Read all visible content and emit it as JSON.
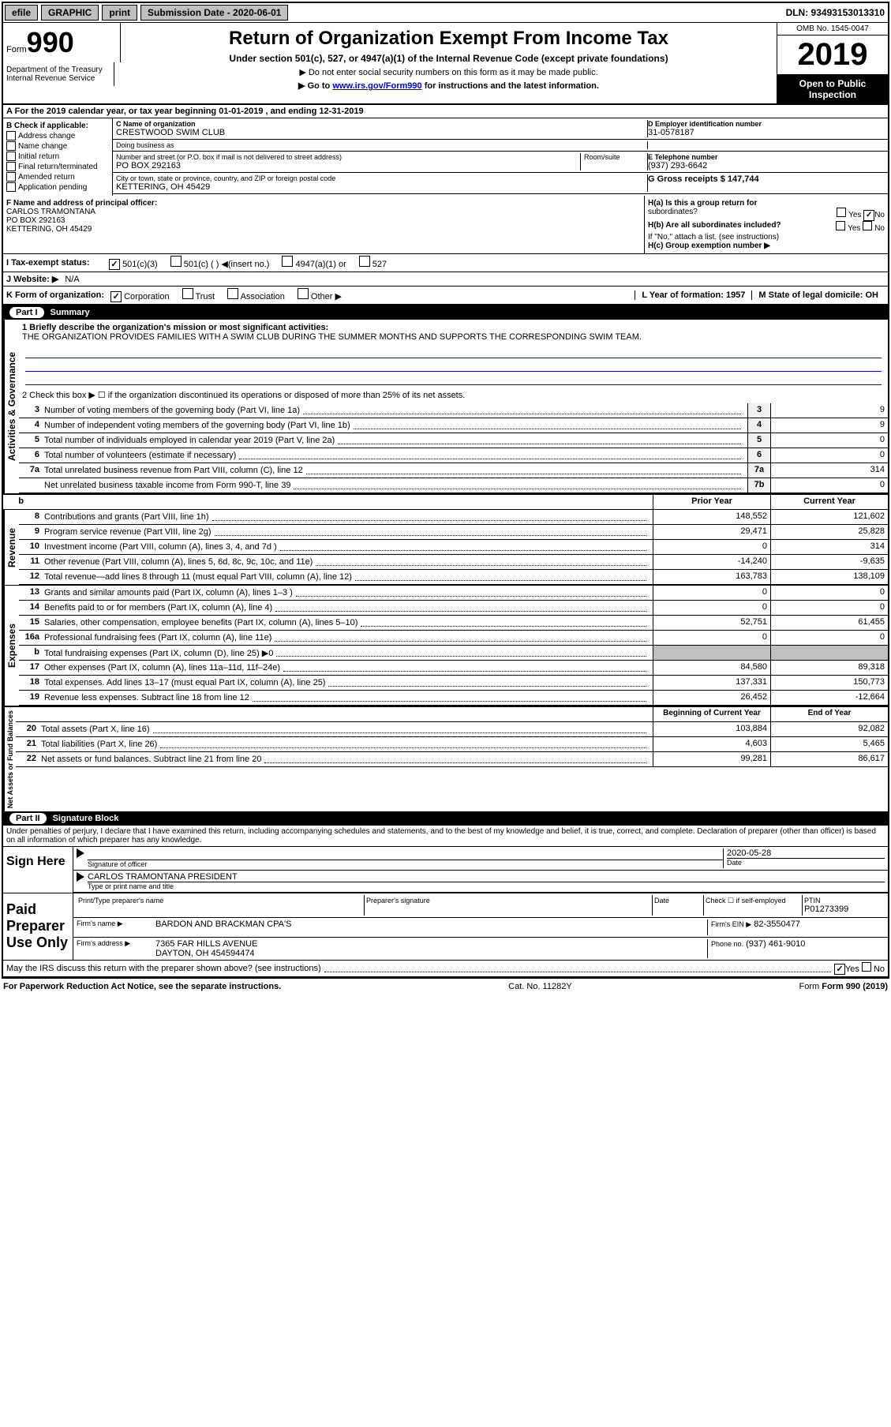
{
  "header_bar": {
    "efile": "efile",
    "graphic": "GRAPHIC",
    "print": "print",
    "sub_date_label": "Submission Date - 2020-06-01",
    "dln_label": "DLN: 93493153013310"
  },
  "form_header": {
    "form_label": "Form",
    "form_num": "990",
    "dept": "Department of the Treasury",
    "irs": "Internal Revenue Service",
    "title": "Return of Organization Exempt From Income Tax",
    "subtitle": "Under section 501(c), 527, or 4947(a)(1) of the Internal Revenue Code (except private foundations)",
    "note1": "▶ Do not enter social security numbers on this form as it may be made public.",
    "note2_pre": "▶ Go to ",
    "note2_link": "www.irs.gov/Form990",
    "note2_post": " for instructions and the latest information.",
    "omb": "OMB No. 1545-0047",
    "year": "2019",
    "inspection": "Open to Public Inspection"
  },
  "row_A": "A For the 2019 calendar year, or tax year beginning 01-01-2019    , and ending 12-31-2019",
  "section_B": {
    "label": "B Check if applicable:",
    "items": [
      "Address change",
      "Name change",
      "Initial return",
      "Final return/terminated",
      "Amended return",
      "Application pending"
    ]
  },
  "section_C": {
    "name_label": "C Name of organization",
    "name": "CRESTWOOD SWIM CLUB",
    "dba_label": "Doing business as",
    "dba": "",
    "addr_label": "Number and street (or P.O. box if mail is not delivered to street address)",
    "room_label": "Room/suite",
    "addr": "PO BOX 292163",
    "city_label": "City or town, state or province, country, and ZIP or foreign postal code",
    "city": "KETTERING, OH  45429"
  },
  "section_D": {
    "label": "D Employer identification number",
    "value": "31-0578187"
  },
  "section_E": {
    "label": "E Telephone number",
    "value": "(937) 293-6642"
  },
  "section_G": {
    "label": "G Gross receipts $ 147,744"
  },
  "section_F": {
    "label": "F Name and address of principal officer:",
    "name": "CARLOS TRAMONTANA",
    "addr1": "PO BOX 292163",
    "addr2": "KETTERING, OH  45429"
  },
  "section_H": {
    "a_label": "H(a)  Is this a group return for",
    "a_sub": "subordinates?",
    "b_label": "H(b)  Are all subordinates included?",
    "b_note": "If \"No,\" attach a list. (see instructions)",
    "c_label": "H(c)  Group exemption number ▶",
    "yes": "Yes",
    "no": "No",
    "a_no_checked": true
  },
  "section_I": {
    "label": "I   Tax-exempt status:",
    "opts": [
      "501(c)(3)",
      "501(c) (  ) ◀(insert no.)",
      "4947(a)(1) or",
      "527"
    ],
    "checked": 0
  },
  "section_J": {
    "label": "J   Website: ▶",
    "value": "N/A"
  },
  "section_K": {
    "label": "K Form of organization:",
    "opts": [
      "Corporation",
      "Trust",
      "Association",
      "Other ▶"
    ],
    "checked": 0
  },
  "section_L": {
    "label": "L Year of formation: 1957"
  },
  "section_M": {
    "label": "M State of legal domicile: OH"
  },
  "part1": {
    "header": "Summary",
    "groups": [
      {
        "label": "Activities & Governance",
        "mission_label": "1   Briefly describe the organization's mission or most significant activities:",
        "mission": "THE ORGANIZATION PROVIDES FAMILIES WITH A SWIM CLUB DURING THE SUMMER MONTHS AND SUPPORTS THE CORRESPONDING SWIM TEAM.",
        "line2": "2   Check this box ▶ ☐  if the organization discontinued its operations or disposed of more than 25% of its net assets.",
        "lines": [
          {
            "n": "3",
            "desc": "Number of voting members of the governing body (Part VI, line 1a)",
            "box": "3",
            "val": "9"
          },
          {
            "n": "4",
            "desc": "Number of independent voting members of the governing body (Part VI, line 1b)",
            "box": "4",
            "val": "9"
          },
          {
            "n": "5",
            "desc": "Total number of individuals employed in calendar year 2019 (Part V, line 2a)",
            "box": "5",
            "val": "0"
          },
          {
            "n": "6",
            "desc": "Total number of volunteers (estimate if necessary)",
            "box": "6",
            "val": "0"
          },
          {
            "n": "7a",
            "desc": "Total unrelated business revenue from Part VIII, column (C), line 12",
            "box": "7a",
            "val": "314"
          },
          {
            "n": "",
            "desc": "Net unrelated business taxable income from Form 990-T, line 39",
            "box": "7b",
            "val": "0"
          }
        ]
      }
    ],
    "revenue": {
      "label": "Revenue",
      "col1": "Prior Year",
      "col2": "Current Year",
      "lines": [
        {
          "n": "8",
          "desc": "Contributions and grants (Part VIII, line 1h)",
          "v1": "148,552",
          "v2": "121,602"
        },
        {
          "n": "9",
          "desc": "Program service revenue (Part VIII, line 2g)",
          "v1": "29,471",
          "v2": "25,828"
        },
        {
          "n": "10",
          "desc": "Investment income (Part VIII, column (A), lines 3, 4, and 7d )",
          "v1": "0",
          "v2": "314"
        },
        {
          "n": "11",
          "desc": "Other revenue (Part VIII, column (A), lines 5, 6d, 8c, 9c, 10c, and 11e)",
          "v1": "-14,240",
          "v2": "-9,635"
        },
        {
          "n": "12",
          "desc": "Total revenue—add lines 8 through 11 (must equal Part VIII, column (A), line 12)",
          "v1": "163,783",
          "v2": "138,109"
        }
      ]
    },
    "expenses": {
      "label": "Expenses",
      "lines": [
        {
          "n": "13",
          "desc": "Grants and similar amounts paid (Part IX, column (A), lines 1–3 )",
          "v1": "0",
          "v2": "0"
        },
        {
          "n": "14",
          "desc": "Benefits paid to or for members (Part IX, column (A), line 4)",
          "v1": "0",
          "v2": "0"
        },
        {
          "n": "15",
          "desc": "Salaries, other compensation, employee benefits (Part IX, column (A), lines 5–10)",
          "v1": "52,751",
          "v2": "61,455"
        },
        {
          "n": "16a",
          "desc": "Professional fundraising fees (Part IX, column (A), line 11e)",
          "v1": "0",
          "v2": "0"
        },
        {
          "n": "b",
          "desc": "Total fundraising expenses (Part IX, column (D), line 25) ▶0",
          "v1": "",
          "v2": "",
          "shaded": true
        },
        {
          "n": "17",
          "desc": "Other expenses (Part IX, column (A), lines 11a–11d, 11f–24e)",
          "v1": "84,580",
          "v2": "89,318"
        },
        {
          "n": "18",
          "desc": "Total expenses. Add lines 13–17 (must equal Part IX, column (A), line 25)",
          "v1": "137,331",
          "v2": "150,773"
        },
        {
          "n": "19",
          "desc": "Revenue less expenses. Subtract line 18 from line 12",
          "v1": "26,452",
          "v2": "-12,664"
        }
      ]
    },
    "netassets": {
      "label": "Net Assets or Fund Balances",
      "col1": "Beginning of Current Year",
      "col2": "End of Year",
      "lines": [
        {
          "n": "20",
          "desc": "Total assets (Part X, line 16)",
          "v1": "103,884",
          "v2": "92,082"
        },
        {
          "n": "21",
          "desc": "Total liabilities (Part X, line 26)",
          "v1": "4,603",
          "v2": "5,465"
        },
        {
          "n": "22",
          "desc": "Net assets or fund balances. Subtract line 21 from line 20",
          "v1": "99,281",
          "v2": "86,617"
        }
      ]
    }
  },
  "part2": {
    "header": "Signature Block",
    "declaration": "Under penalties of perjury, I declare that I have examined this return, including accompanying schedules and statements, and to the best of my knowledge and belief, it is true, correct, and complete. Declaration of preparer (other than officer) is based on all information of which preparer has any knowledge.",
    "sign_here": "Sign Here",
    "sig_officer": "Signature of officer",
    "date_label": "Date",
    "date": "2020-05-28",
    "name_title": "CARLOS TRAMONTANA  PRESIDENT",
    "name_title_label": "Type or print name and title",
    "paid_prep": "Paid Preparer Use Only",
    "prep_name_label": "Print/Type preparer's name",
    "prep_sig_label": "Preparer's signature",
    "prep_date_label": "Date",
    "check_self": "Check ☐ if self-employed",
    "ptin_label": "PTIN",
    "ptin": "P01273399",
    "firm_name_label": "Firm's name     ▶",
    "firm_name": "BARDON AND BRACKMAN CPA'S",
    "firm_ein_label": "Firm's EIN ▶",
    "firm_ein": "82-3550477",
    "firm_addr_label": "Firm's address ▶",
    "firm_addr1": "7365 FAR HILLS AVENUE",
    "firm_addr2": "DAYTON, OH  454594474",
    "phone_label": "Phone no.",
    "phone": "(937) 461-9010",
    "discuss": "May the IRS discuss this return with the preparer shown above? (see instructions)",
    "discuss_yes": true
  },
  "footer": {
    "left": "For Paperwork Reduction Act Notice, see the separate instructions.",
    "mid": "Cat. No. 11282Y",
    "right": "Form 990 (2019)"
  },
  "colors": {
    "bg": "#ffffff",
    "text": "#000000",
    "link": "#0000ee",
    "black_bg": "#000000",
    "shaded": "#c0c0c0",
    "numbox_bg": "#f0f0f0"
  }
}
